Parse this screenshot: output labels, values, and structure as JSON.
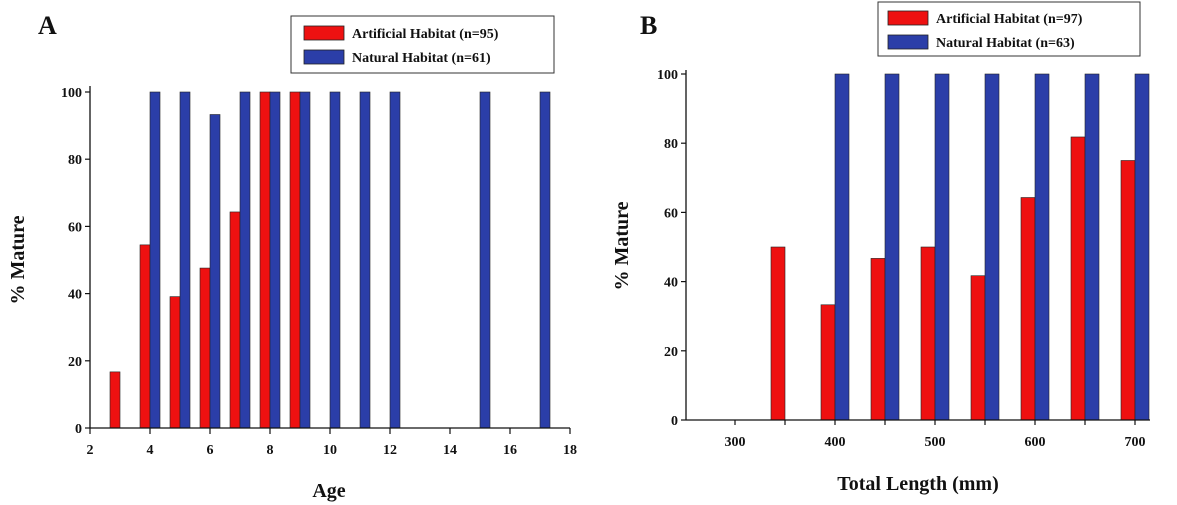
{
  "chart_data": [
    {
      "type": "bar",
      "panel_label": "A",
      "xlabel": "Age",
      "ylabel": "% Mature",
      "xlim": [
        2,
        18
      ],
      "ylim": [
        0,
        100
      ],
      "x_ticks": [
        2,
        4,
        6,
        8,
        10,
        12,
        14,
        16,
        18
      ],
      "y_ticks": [
        0,
        20,
        40,
        60,
        80,
        100
      ],
      "legend_position": "top-right",
      "series": [
        {
          "name": "Artificial Habitat (n=95)",
          "color": "#ee1111",
          "x": [
            3,
            4,
            5,
            6,
            7,
            8,
            9
          ],
          "values": [
            16.7,
            54.5,
            39.1,
            47.6,
            64.3,
            100,
            100
          ]
        },
        {
          "name": "Natural Habitat (n=61)",
          "color": "#2b3ea8",
          "x": [
            4,
            5,
            6,
            7,
            8,
            9,
            10,
            11,
            12,
            15,
            17
          ],
          "values": [
            100,
            100,
            93.3,
            100,
            100,
            100,
            100,
            100,
            100,
            100,
            100
          ]
        }
      ]
    },
    {
      "type": "bar",
      "panel_label": "B",
      "xlabel": "Total Length (mm)",
      "ylabel": "% Mature",
      "ylim": [
        0,
        100
      ],
      "categories": [
        "300",
        "350",
        "400",
        "450",
        "500",
        "550",
        "600",
        "650",
        "700"
      ],
      "x_tick_labels": [
        "300",
        "400",
        "500",
        "600",
        "700"
      ],
      "y_ticks": [
        0,
        20,
        40,
        60,
        80,
        100
      ],
      "legend_position": "top-right",
      "series": [
        {
          "name": "Artificial Habitat (n=97)",
          "color": "#ee1111",
          "values": [
            null,
            50,
            33.3,
            46.7,
            50,
            41.7,
            64.3,
            81.8,
            75
          ]
        },
        {
          "name": "Natural Habitat (n=63)",
          "color": "#2b3ea8",
          "values": [
            null,
            null,
            100,
            100,
            100,
            100,
            100,
            100,
            100
          ]
        }
      ]
    }
  ]
}
